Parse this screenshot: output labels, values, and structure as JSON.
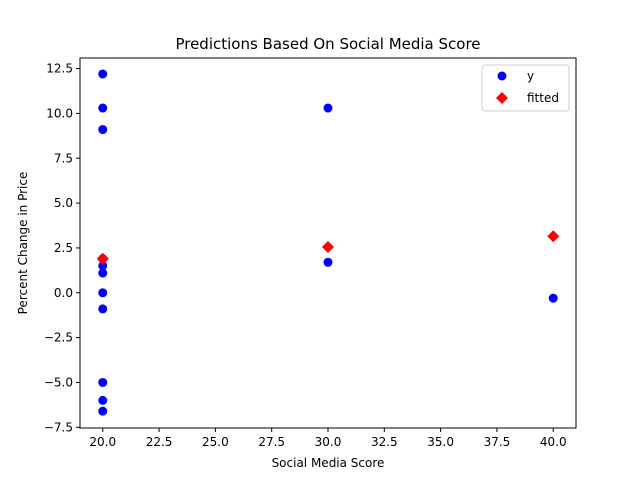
{
  "chart_data": {
    "type": "scatter",
    "title": "Predictions Based On Social Media Score",
    "xlabel": "Social Media Score",
    "ylabel": "Percent Change in Price",
    "xlim": [
      18.99,
      41.01
    ],
    "ylim": [
      -7.54,
      13.09
    ],
    "xticks": [
      "20.0",
      "22.5",
      "25.0",
      "27.5",
      "30.0",
      "32.5",
      "35.0",
      "37.5",
      "40.0"
    ],
    "yticks": [
      "−7.5",
      "−5.0",
      "−2.5",
      "0.0",
      "2.5",
      "5.0",
      "7.5",
      "10.0",
      "12.5"
    ],
    "grid": false,
    "legend_position": "top-right",
    "series": [
      {
        "name": "y",
        "marker": "circle",
        "color": "#0000ff",
        "points": [
          [
            20,
            12.2
          ],
          [
            20,
            10.3
          ],
          [
            20,
            9.1
          ],
          [
            20,
            1.9
          ],
          [
            20,
            1.5
          ],
          [
            20,
            1.1
          ],
          [
            20,
            0.0
          ],
          [
            20,
            -0.9
          ],
          [
            20,
            -5.0
          ],
          [
            20,
            -6.0
          ],
          [
            20,
            -6.6
          ],
          [
            30,
            10.3
          ],
          [
            30,
            1.7
          ],
          [
            40,
            -0.3
          ]
        ]
      },
      {
        "name": "fitted",
        "marker": "diamond",
        "color": "#ff0000",
        "points": [
          [
            20,
            1.9
          ],
          [
            30,
            2.55
          ],
          [
            40,
            3.15
          ]
        ]
      }
    ]
  }
}
